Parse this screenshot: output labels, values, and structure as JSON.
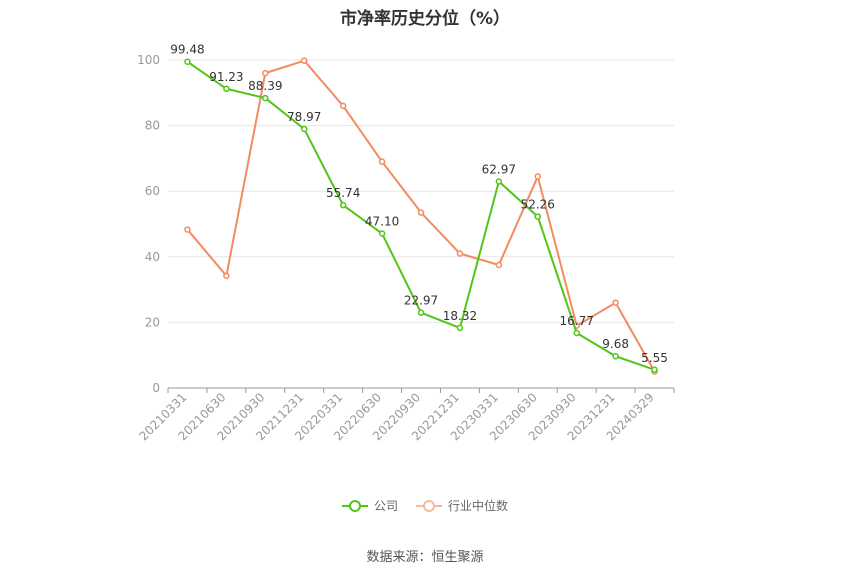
{
  "chart_data": {
    "type": "line",
    "title": "市净率历史分位（%）",
    "categories": [
      "20210331",
      "20210630",
      "20210930",
      "20211231",
      "20220331",
      "20220630",
      "20220930",
      "20221231",
      "20230331",
      "20230630",
      "20230930",
      "20231231",
      "20240329"
    ],
    "ylim": [
      0,
      100
    ],
    "yticks": [
      0,
      20,
      40,
      60,
      80,
      100
    ],
    "grid": true,
    "legend_position": "bottom",
    "series": [
      {
        "name": "公司",
        "color": "#52c41a",
        "values": [
          99.48,
          91.23,
          88.39,
          78.97,
          55.74,
          47.1,
          22.97,
          18.32,
          62.97,
          52.26,
          16.77,
          9.68,
          5.55
        ],
        "labels": [
          "99.48",
          "91.23",
          "88.39",
          "78.97",
          "55.74",
          "47.10",
          "22.97",
          "18.32",
          "62.97",
          "52.26",
          "16.77",
          "9.68",
          "5.55"
        ]
      },
      {
        "name": "行业中位数",
        "color": "#f28c5f",
        "values": [
          48.3,
          34.2,
          96.0,
          99.8,
          86.0,
          69.0,
          53.5,
          41.0,
          37.5,
          64.5,
          19.0,
          26.0,
          5.0
        ]
      }
    ]
  },
  "source_note": "数据来源：恒生聚源"
}
